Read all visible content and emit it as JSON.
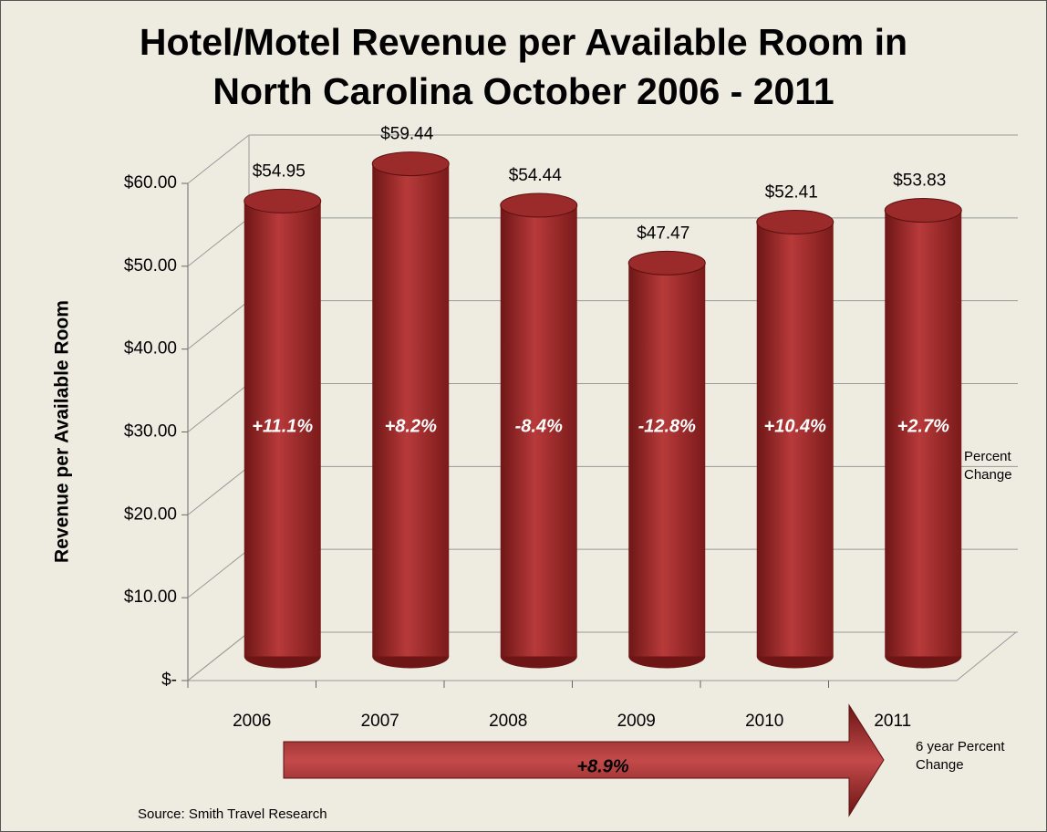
{
  "chart_data": {
    "type": "bar",
    "title": "Hotel/Motel Revenue per Available Room in North Carolina October 2006 - 2011",
    "y_label": "Revenue per Available Room",
    "categories": [
      "2006",
      "2007",
      "2008",
      "2009",
      "2010",
      "2011"
    ],
    "values": [
      54.95,
      59.44,
      54.44,
      47.47,
      52.41,
      53.83
    ],
    "value_labels": [
      "$54.95",
      "$59.44",
      "$54.44",
      "$47.47",
      "$52.41",
      "$53.83"
    ],
    "percent_changes": [
      "+11.1%",
      "+8.2%",
      "-8.4%",
      "-12.8%",
      "+10.4%",
      "+2.7%"
    ],
    "percent_change_label": "Percent Change",
    "total_change": "+8.9%",
    "total_change_label": "6 year Percent Change",
    "source": "Source: Smith Travel Research",
    "color": "#9b2a2a",
    "ylim": [
      0,
      60
    ],
    "yticks": [
      {
        "value": 0,
        "label": "$-"
      },
      {
        "value": 10,
        "label": "$10.00"
      },
      {
        "value": 20,
        "label": "$20.00"
      },
      {
        "value": 30,
        "label": "$30.00"
      },
      {
        "value": 40,
        "label": "$40.00"
      },
      {
        "value": 50,
        "label": "$50.00"
      },
      {
        "value": 60,
        "label": "$60.00"
      }
    ],
    "grid": true
  }
}
